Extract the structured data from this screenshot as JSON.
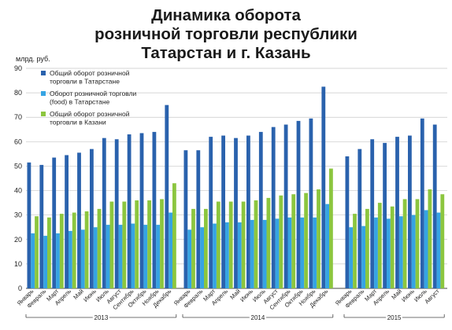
{
  "title_lines": [
    "Динамика оборота",
    "розничной торговли республики",
    "Татарстан и г. Казань"
  ],
  "colors": {
    "series_1": "#2a62ad",
    "series_2": "#36a4e3",
    "series_3": "#8cc63f",
    "grid": "#c8c8c8",
    "axis": "#444444"
  },
  "chart_data": {
    "type": "bar",
    "title": "Динамика оборота розничной торговли республики Татарстан и г. Казань",
    "ylabel": "млрд. руб.",
    "ylim": [
      0,
      90
    ],
    "yticks": [
      0,
      10,
      20,
      30,
      40,
      50,
      60,
      70,
      80,
      90
    ],
    "grid": true,
    "legend_position": "top-left",
    "groups": [
      {
        "label": "2013",
        "categories": [
          "Январь",
          "Февраль",
          "Март",
          "Апрель",
          "Май",
          "Июнь",
          "Июль",
          "Август",
          "Сентябрь",
          "Октябрь",
          "Ноябрь",
          "Декабрь"
        ]
      },
      {
        "label": "2014",
        "categories": [
          "Январь",
          "Февраль",
          "Март",
          "Апрель",
          "Май",
          "Июнь",
          "Июль",
          "Август",
          "Сентябрь",
          "Октябрь",
          "Ноябрь",
          "Декабрь"
        ]
      },
      {
        "label": "2015",
        "categories": [
          "Январь",
          "Февраль",
          "Март",
          "Апрель",
          "Май",
          "Июнь",
          "Июль",
          "Август"
        ]
      }
    ],
    "series": [
      {
        "name": "Общий оборот розничной торговли в Татарстане",
        "values": [
          [
            51.5,
            50.5,
            53.5,
            54.5,
            55.5,
            57,
            61.5,
            61,
            63,
            63.5,
            64,
            75
          ],
          [
            56.5,
            56.5,
            62,
            62.5,
            61.5,
            62.5,
            64,
            66,
            67,
            68.5,
            69.5,
            82.5
          ],
          [
            54,
            57,
            61,
            59.5,
            62,
            62.5,
            69.5,
            67
          ]
        ]
      },
      {
        "name": "Оборот розничной торговли (food) в Татарстане",
        "values": [
          [
            22.5,
            21.5,
            22.5,
            23.5,
            24,
            25,
            26,
            26,
            26.5,
            26,
            26,
            31
          ],
          [
            24,
            25,
            26.5,
            27,
            27,
            28,
            28,
            28.5,
            29,
            29,
            29,
            34.5
          ],
          [
            25,
            25.5,
            29,
            28.5,
            29.5,
            30,
            32,
            31
          ]
        ]
      },
      {
        "name": "Общий оборот розничной торговли в Казани",
        "values": [
          [
            29.5,
            29,
            30.5,
            31,
            31.5,
            32.5,
            35.5,
            35.5,
            36,
            36,
            36.5,
            43
          ],
          [
            32.5,
            32.5,
            35.5,
            35.5,
            35.5,
            36,
            37,
            38,
            38.5,
            39,
            40.5,
            49
          ],
          [
            30.5,
            32.5,
            35,
            33.5,
            36.5,
            36.5,
            40.5,
            38.5
          ]
        ]
      }
    ]
  }
}
